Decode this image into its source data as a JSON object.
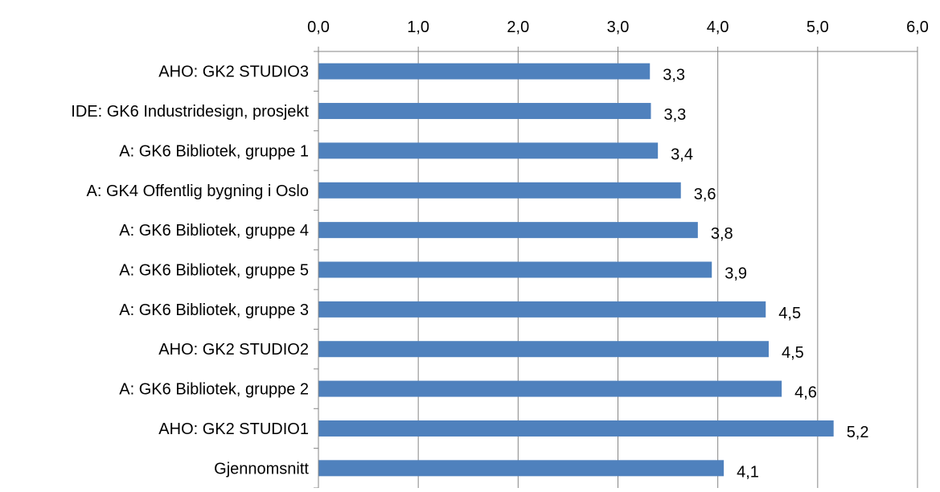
{
  "chart_data": {
    "type": "bar",
    "orientation": "horizontal",
    "categories": [
      "AHO: GK2 STUDIO3",
      "IDE: GK6 Industridesign, prosjekt",
      "A: GK6 Bibliotek, gruppe 1",
      "A: GK4 Offentlig bygning i Oslo",
      "A: GK6 Bibliotek, gruppe 4",
      "A: GK6 Bibliotek, gruppe 5",
      "A: GK6 Bibliotek, gruppe 3",
      "AHO: GK2 STUDIO2",
      "A: GK6 Bibliotek, gruppe 2",
      "AHO: GK2 STUDIO1",
      "Gjennomsnitt"
    ],
    "values": [
      3.32,
      3.33,
      3.4,
      3.63,
      3.8,
      3.94,
      4.48,
      4.51,
      4.64,
      5.16,
      4.06
    ],
    "data_labels": [
      "3,3",
      "3,3",
      "3,4",
      "3,6",
      "3,8",
      "3,9",
      "4,5",
      "4,5",
      "4,6",
      "5,2",
      "4,1"
    ],
    "xlim": [
      0,
      6
    ],
    "ticks": [
      0,
      1,
      2,
      3,
      4,
      5,
      6
    ],
    "tick_labels": [
      "0,0",
      "1,0",
      "2,0",
      "3,0",
      "4,0",
      "5,0",
      "6,0"
    ],
    "axis_position": "top",
    "grid": true,
    "legend": "none",
    "title": "",
    "xlabel": "",
    "ylabel": "",
    "colors": {
      "bar": "#4F81BD",
      "grid": "#868686",
      "text": "#000000"
    }
  }
}
